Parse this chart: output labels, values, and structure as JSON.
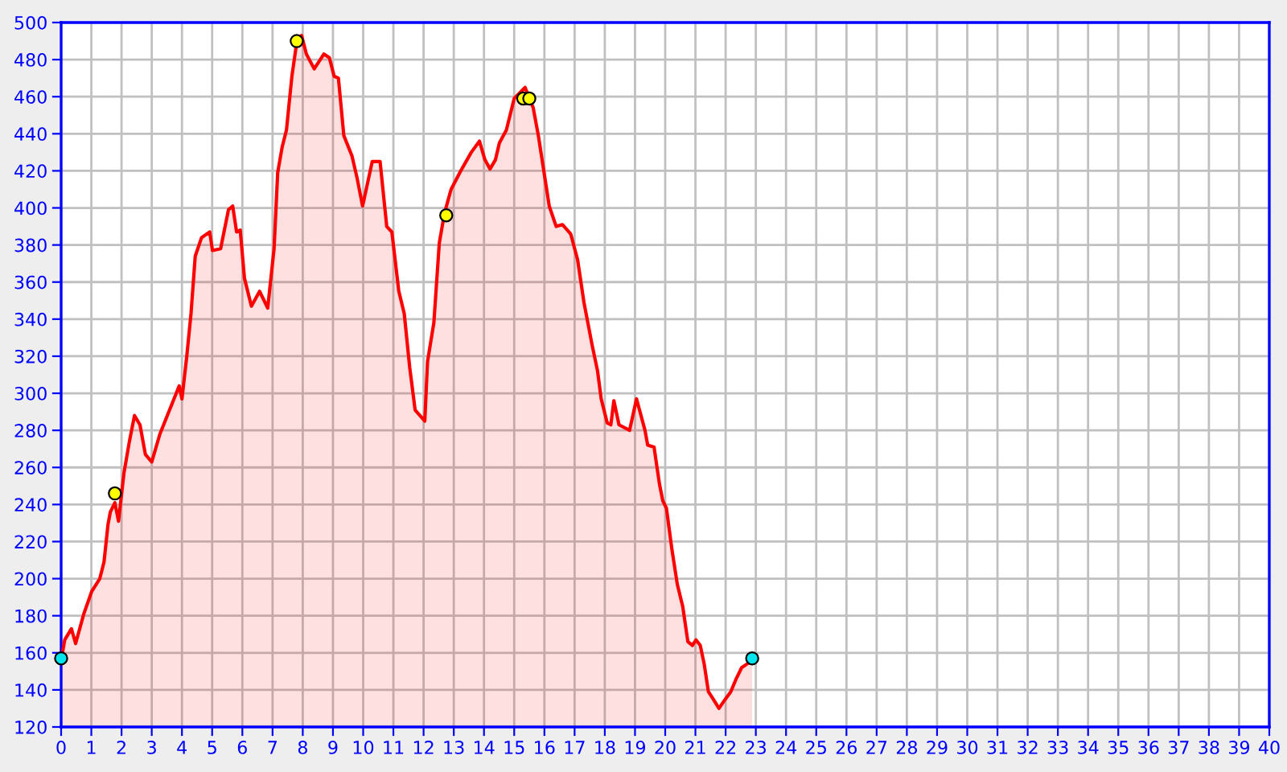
{
  "chart_data": {
    "type": "area",
    "xlim": [
      0,
      40
    ],
    "ylim": [
      120,
      500
    ],
    "xticks": [
      0,
      1,
      2,
      3,
      4,
      5,
      6,
      7,
      8,
      9,
      10,
      11,
      12,
      13,
      14,
      15,
      16,
      17,
      18,
      19,
      20,
      21,
      22,
      23,
      24,
      25,
      26,
      27,
      28,
      29,
      30,
      31,
      32,
      33,
      34,
      35,
      36,
      37,
      38,
      39,
      40
    ],
    "yticks": [
      120,
      140,
      160,
      180,
      200,
      220,
      240,
      260,
      280,
      300,
      320,
      340,
      360,
      380,
      400,
      420,
      440,
      460,
      480,
      500
    ],
    "grid": true,
    "legend": false,
    "series": [
      {
        "color": "#ff0000",
        "marker": "none",
        "line_style": "solid",
        "x": [
          0,
          0.12,
          0.34,
          0.48,
          0.75,
          1.01,
          1.28,
          1.42,
          1.55,
          1.63,
          1.78,
          1.9,
          2.08,
          2.26,
          2.43,
          2.61,
          2.79,
          3.0,
          3.27,
          3.59,
          3.91,
          4.0,
          4.16,
          4.3,
          4.44,
          4.65,
          4.92,
          5.01,
          5.28,
          5.54,
          5.68,
          5.81,
          5.93,
          6.07,
          6.3,
          6.57,
          6.84,
          7.05,
          7.17,
          7.32,
          7.46,
          7.64,
          7.78,
          7.96,
          8.12,
          8.38,
          8.7,
          8.88,
          9.04,
          9.18,
          9.36,
          9.63,
          9.8,
          9.98,
          10.3,
          10.56,
          10.78,
          10.95,
          11.18,
          11.36,
          11.54,
          11.72,
          12.04,
          12.13,
          12.34,
          12.52,
          12.69,
          12.91,
          13.23,
          13.58,
          13.85,
          14.03,
          14.2,
          14.38,
          14.51,
          14.74,
          15.0,
          15.36,
          15.63,
          15.8,
          15.98,
          16.16,
          16.39,
          16.6,
          16.87,
          17.1,
          17.31,
          17.58,
          17.76,
          17.88,
          18.08,
          18.2,
          18.3,
          18.47,
          18.82,
          19.05,
          19.33,
          19.42,
          19.63,
          19.81,
          19.92,
          20.04,
          20.22,
          20.4,
          20.58,
          20.75,
          20.9,
          21.02,
          21.16,
          21.29,
          21.43,
          21.59,
          21.78,
          21.99,
          22.17,
          22.35,
          22.53,
          22.71,
          22.88
        ],
        "values": [
          156,
          167,
          173,
          165,
          181,
          193,
          200,
          209,
          229,
          236,
          241,
          231,
          257,
          274,
          288,
          283,
          267,
          263,
          278,
          291,
          304,
          297,
          320,
          343,
          374,
          384,
          387,
          377,
          378,
          399,
          401,
          387,
          388,
          362,
          347,
          355,
          346,
          378,
          419,
          433,
          442,
          471,
          487,
          493,
          483,
          475,
          483,
          481,
          471,
          470,
          439,
          428,
          416,
          401,
          425,
          425,
          390,
          387,
          355,
          343,
          314,
          291,
          285,
          317,
          338,
          381,
          397,
          410,
          420,
          430,
          436,
          426,
          421,
          426,
          435,
          442,
          459,
          465,
          454,
          439,
          420,
          401,
          390,
          391,
          386,
          372,
          349,
          326,
          312,
          297,
          284,
          283,
          296,
          283,
          280,
          297,
          280,
          272,
          271,
          251,
          242,
          238,
          216,
          197,
          185,
          166,
          164,
          167,
          164,
          154,
          139,
          135,
          130,
          135,
          139,
          146,
          152,
          154,
          156
        ]
      },
      {
        "type": "scatter",
        "color": "#ffff00",
        "marker": "circle",
        "x": [
          1.78,
          7.8,
          12.75,
          15.3,
          15.5
        ],
        "values": [
          246,
          490,
          396,
          459,
          459
        ]
      },
      {
        "type": "scatter",
        "color": "#00e5ee",
        "marker": "circle",
        "x": [
          0,
          22.88
        ],
        "values": [
          157,
          157
        ]
      }
    ]
  }
}
